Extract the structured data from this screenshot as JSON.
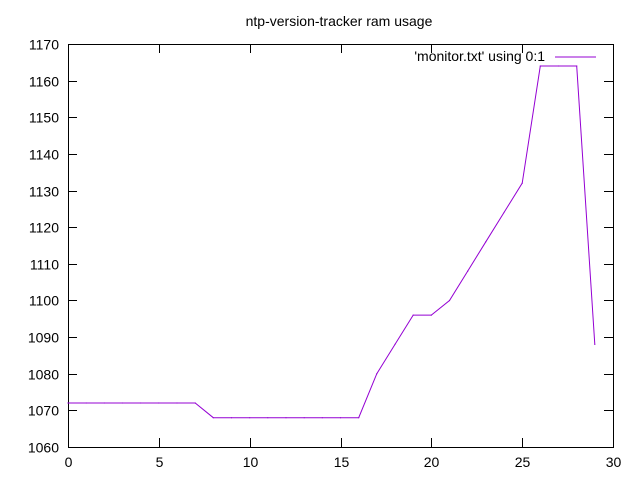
{
  "chart_data": {
    "type": "line",
    "title": "ntp-version-tracker ram usage",
    "xlabel": "",
    "ylabel": "",
    "xlim": [
      0,
      30
    ],
    "ylim": [
      1060,
      1170
    ],
    "xticks": [
      "0",
      "5",
      "10",
      "15",
      "20",
      "25",
      "30"
    ],
    "yticks": [
      "1060",
      "1070",
      "1080",
      "1090",
      "1100",
      "1110",
      "1120",
      "1130",
      "1140",
      "1150",
      "1160",
      "1170"
    ],
    "grid": false,
    "legend_position": "top-right",
    "series": [
      {
        "name": "'monitor.txt' using 0:1",
        "color": "#9400d3",
        "x": [
          0,
          1,
          2,
          3,
          4,
          5,
          6,
          7,
          8,
          9,
          10,
          11,
          12,
          13,
          14,
          15,
          16,
          17,
          18,
          19,
          20,
          21,
          22,
          23,
          24,
          25,
          26,
          27,
          28,
          29
        ],
        "y": [
          1072,
          1072,
          1072,
          1072,
          1072,
          1072,
          1072,
          1072,
          1068,
          1068,
          1068,
          1068,
          1068,
          1068,
          1068,
          1068,
          1068,
          1080,
          1088,
          1096,
          1096,
          1100,
          1108,
          1116,
          1124,
          1132,
          1164,
          1164,
          1164,
          1088
        ]
      }
    ]
  }
}
